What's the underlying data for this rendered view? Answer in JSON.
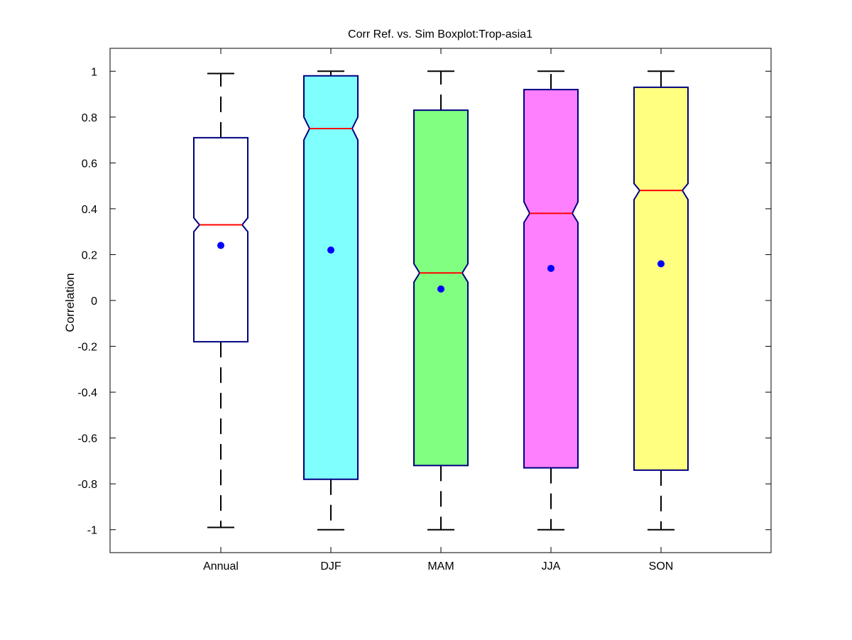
{
  "chart_data": {
    "type": "boxplot",
    "title": "Corr Ref. vs. Sim Boxplot:Trop-asia1",
    "xlabel": "",
    "ylabel": "Correlation",
    "ylim": [
      -1.1,
      1.1
    ],
    "yticks": [
      "-1",
      "-0.8",
      "-0.6",
      "-0.4",
      "-0.2",
      "0",
      "0.2",
      "0.4",
      "0.6",
      "0.8",
      "1"
    ],
    "yticks_values": [
      -1,
      -0.8,
      -0.6,
      -0.4,
      -0.2,
      0,
      0.2,
      0.4,
      0.6,
      0.8,
      1
    ],
    "grid": false,
    "notched": true,
    "categories": [
      "Annual",
      "DJF",
      "MAM",
      "JJA",
      "SON"
    ],
    "boxes": [
      {
        "category": "Annual",
        "whisker_low": -0.99,
        "q1": -0.18,
        "median": 0.33,
        "q3": 0.71,
        "whisker_high": 0.99,
        "notch_low": 0.3,
        "notch_high": 0.36,
        "mean": 0.24,
        "fill": "#ffffff"
      },
      {
        "category": "DJF",
        "whisker_low": -1.0,
        "q1": -0.78,
        "median": 0.75,
        "q3": 0.98,
        "whisker_high": 1.0,
        "notch_low": 0.7,
        "notch_high": 0.8,
        "mean": 0.22,
        "fill": "#80ffff"
      },
      {
        "category": "MAM",
        "whisker_low": -1.0,
        "q1": -0.72,
        "median": 0.12,
        "q3": 0.83,
        "whisker_high": 1.0,
        "notch_low": 0.08,
        "notch_high": 0.16,
        "mean": 0.05,
        "fill": "#80ff80"
      },
      {
        "category": "JJA",
        "whisker_low": -1.0,
        "q1": -0.73,
        "median": 0.38,
        "q3": 0.92,
        "whisker_high": 1.0,
        "notch_low": 0.34,
        "notch_high": 0.43,
        "mean": 0.14,
        "fill": "#ff80ff"
      },
      {
        "category": "SON",
        "whisker_low": -1.0,
        "q1": -0.74,
        "median": 0.48,
        "q3": 0.93,
        "whisker_high": 1.0,
        "notch_low": 0.44,
        "notch_high": 0.51,
        "mean": 0.16,
        "fill": "#ffff80"
      }
    ],
    "colors": {
      "box_edge": "#000080",
      "median": "#ff0000",
      "mean_marker": "#0000ff",
      "whisker": "#000000"
    }
  }
}
